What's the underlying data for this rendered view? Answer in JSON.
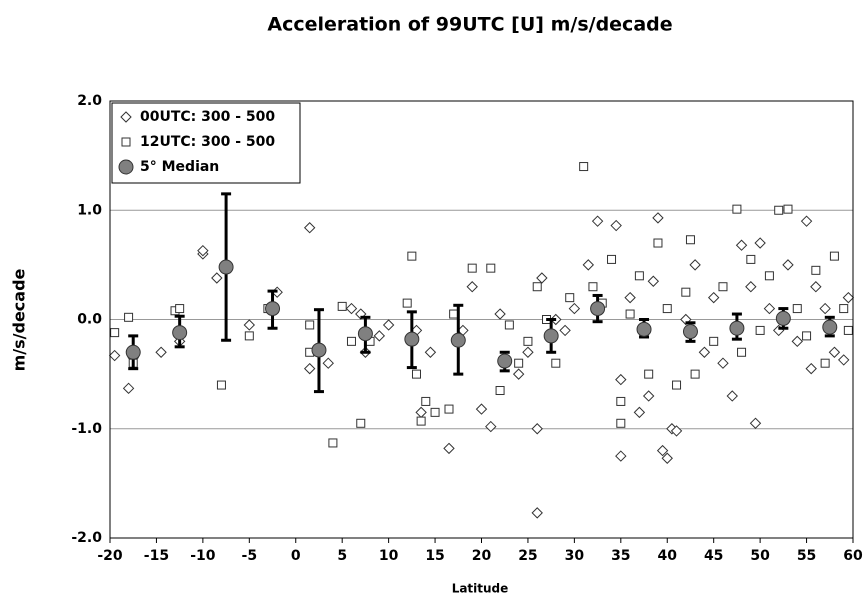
{
  "chart_data": {
    "type": "scatter",
    "title": "Acceleration of 99UTC [U] m/s/decade",
    "x_label": "Latitude",
    "y_label": "m/s/decade",
    "xlim": [
      -20,
      60
    ],
    "xticks": [
      -20,
      -15,
      -10,
      -5,
      0,
      5,
      10,
      15,
      20,
      25,
      30,
      35,
      40,
      45,
      50,
      55,
      60
    ],
    "ylim": [
      -2,
      2
    ],
    "yticks": [
      {
        "value": -2,
        "label": "-2.0"
      },
      {
        "value": -1,
        "label": "-1.0"
      },
      {
        "value": 0,
        "label": "0.0"
      },
      {
        "value": 1,
        "label": "1.0"
      },
      {
        "value": 2,
        "label": "2.0"
      }
    ],
    "grid": true,
    "legend": "upper left",
    "series": [
      {
        "name": "00UTC: 300 - 500",
        "marker": "diamond",
        "color": "#333333",
        "x": [
          -19.5,
          -18,
          -17.5,
          -14.5,
          -12.5,
          -10,
          -10,
          -8.5,
          -5,
          -2,
          1.5,
          1.5,
          3.5,
          6,
          7,
          7.5,
          9,
          10,
          13,
          13.5,
          14.5,
          16.5,
          18,
          19,
          20,
          21,
          22,
          24,
          25,
          26,
          26,
          26.5,
          28,
          29,
          30,
          31.5,
          32.5,
          34.5,
          35,
          35,
          36,
          37,
          38,
          38.5,
          39,
          39.5,
          40,
          40.5,
          41,
          42,
          43,
          44,
          45,
          46,
          47,
          48,
          49,
          49.5,
          50,
          51,
          52,
          53,
          54,
          55,
          55.5,
          56,
          57,
          58,
          59,
          59.5
        ],
        "values": [
          -0.33,
          -0.63,
          -0.35,
          -0.3,
          -0.2,
          0.6,
          0.63,
          0.38,
          -0.05,
          0.25,
          0.84,
          -0.45,
          -0.4,
          0.1,
          0.05,
          -0.3,
          -0.15,
          -0.05,
          -0.1,
          -0.85,
          -0.3,
          -1.18,
          -0.1,
          0.3,
          -0.82,
          -0.98,
          0.05,
          -0.5,
          -0.3,
          -1.0,
          -1.77,
          0.38,
          0.0,
          -0.1,
          0.1,
          0.5,
          0.9,
          0.86,
          -1.25,
          -0.55,
          0.2,
          -0.85,
          -0.7,
          0.35,
          0.93,
          -1.2,
          -1.27,
          -1.0,
          -1.02,
          0.0,
          0.5,
          -0.3,
          0.2,
          -0.4,
          -0.7,
          0.68,
          0.3,
          -0.95,
          0.7,
          0.1,
          -0.1,
          0.5,
          -0.2,
          0.9,
          -0.45,
          0.3,
          0.1,
          -0.3,
          -0.37,
          0.2
        ]
      },
      {
        "name": "12UTC: 300 - 500",
        "marker": "square",
        "color": "#333333",
        "x": [
          -19.5,
          -18,
          -17.5,
          -13,
          -12.5,
          -8,
          -5,
          -3,
          1.5,
          1.5,
          4,
          5,
          6,
          7,
          8,
          12.5,
          12,
          13,
          13.5,
          14,
          15,
          16.5,
          17,
          19,
          21,
          22,
          23,
          24,
          25,
          26,
          27,
          28,
          29.5,
          31,
          32,
          33,
          34,
          35,
          35,
          36,
          37,
          38,
          39,
          40,
          41,
          42,
          42.5,
          43,
          45,
          46,
          47.5,
          48,
          49,
          50,
          51,
          52,
          53,
          54,
          55,
          56,
          57,
          58,
          59,
          59.5
        ],
        "values": [
          -0.12,
          0.02,
          -0.4,
          0.08,
          0.1,
          -0.6,
          -0.15,
          0.1,
          -0.05,
          -0.3,
          -1.13,
          0.12,
          -0.2,
          -0.95,
          -0.2,
          0.58,
          0.15,
          -0.5,
          -0.93,
          -0.75,
          -0.85,
          -0.82,
          0.05,
          0.47,
          0.47,
          -0.65,
          -0.05,
          -0.4,
          -0.2,
          0.3,
          0.0,
          -0.4,
          0.2,
          1.4,
          0.3,
          0.15,
          0.55,
          -0.95,
          -0.75,
          0.05,
          0.4,
          -0.5,
          0.7,
          0.1,
          -0.6,
          0.25,
          0.73,
          -0.5,
          -0.2,
          0.3,
          1.01,
          -0.3,
          0.55,
          -0.1,
          0.4,
          1.0,
          1.01,
          0.1,
          -0.15,
          0.45,
          -0.4,
          0.58,
          0.1,
          -0.1
        ]
      },
      {
        "name": "5° Median",
        "marker": "circle",
        "color": "#808080",
        "x": [
          -17.5,
          -12.5,
          -7.5,
          -2.5,
          2.5,
          7.5,
          12.5,
          17.5,
          22.5,
          27.5,
          32.5,
          37.5,
          42.5,
          47.5,
          52.5,
          57.5
        ],
        "values": [
          -0.3,
          -0.12,
          0.48,
          0.1,
          -0.28,
          -0.13,
          -0.18,
          -0.19,
          -0.38,
          -0.15,
          0.1,
          -0.09,
          -0.11,
          -0.08,
          0.01,
          -0.07
        ],
        "low": [
          -0.45,
          -0.25,
          -0.19,
          -0.08,
          -0.66,
          -0.3,
          -0.44,
          -0.5,
          -0.47,
          -0.3,
          -0.02,
          -0.16,
          -0.2,
          -0.18,
          -0.08,
          -0.15
        ],
        "high": [
          -0.15,
          0.03,
          1.15,
          0.26,
          0.09,
          0.02,
          0.07,
          0.13,
          -0.3,
          0.0,
          0.22,
          0.0,
          -0.03,
          0.05,
          0.1,
          0.02
        ]
      }
    ]
  }
}
